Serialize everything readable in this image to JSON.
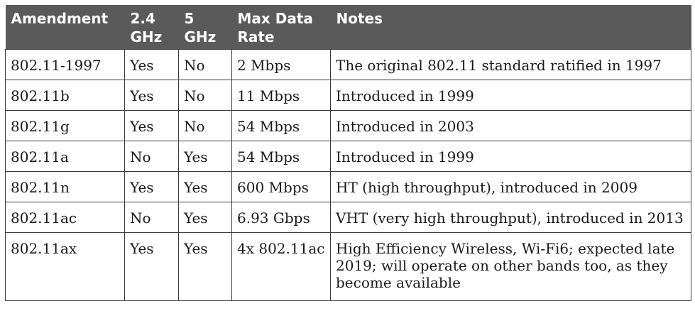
{
  "table": {
    "headers": [
      {
        "key": "amendment",
        "lines": [
          "Amendment"
        ]
      },
      {
        "key": "ghz24",
        "lines": [
          "2.4",
          "GHz"
        ]
      },
      {
        "key": "ghz5",
        "lines": [
          "5",
          "GHz"
        ]
      },
      {
        "key": "max_rate",
        "lines": [
          "Max Data",
          "Rate"
        ]
      },
      {
        "key": "notes",
        "lines": [
          "Notes"
        ]
      }
    ],
    "rows": [
      {
        "amendment": "802.11-1997",
        "ghz24": "Yes",
        "ghz5": "No",
        "max_rate": "2 Mbps",
        "notes": "The original 802.11 standard ratified in 1997"
      },
      {
        "amendment": "802.11b",
        "ghz24": "Yes",
        "ghz5": "No",
        "max_rate": "11 Mbps",
        "notes": "Introduced in 1999"
      },
      {
        "amendment": "802.11g",
        "ghz24": "Yes",
        "ghz5": "No",
        "max_rate": "54 Mbps",
        "notes": "Introduced in 2003"
      },
      {
        "amendment": "802.11a",
        "ghz24": "No",
        "ghz5": "Yes",
        "max_rate": "54 Mbps",
        "notes": "Introduced in 1999"
      },
      {
        "amendment": "802.11n",
        "ghz24": "Yes",
        "ghz5": "Yes",
        "max_rate": "600 Mbps",
        "notes": "HT (high throughput), introduced in 2009"
      },
      {
        "amendment": "802.11ac",
        "ghz24": "No",
        "ghz5": "Yes",
        "max_rate": "6.93 Gbps",
        "notes": "VHT (very high throughput), introduced in 2013"
      },
      {
        "amendment": "802.11ax",
        "ghz24": "Yes",
        "ghz5": "Yes",
        "max_rate": "4x 802.11ac",
        "notes": "High Efficiency Wireless, Wi-Fi6; expected late 2019; will operate on other bands too, as they become available"
      }
    ]
  },
  "colors": {
    "header_background": "#5a5a5a",
    "header_text": "#ffffff",
    "border": "#3a3a3a"
  }
}
